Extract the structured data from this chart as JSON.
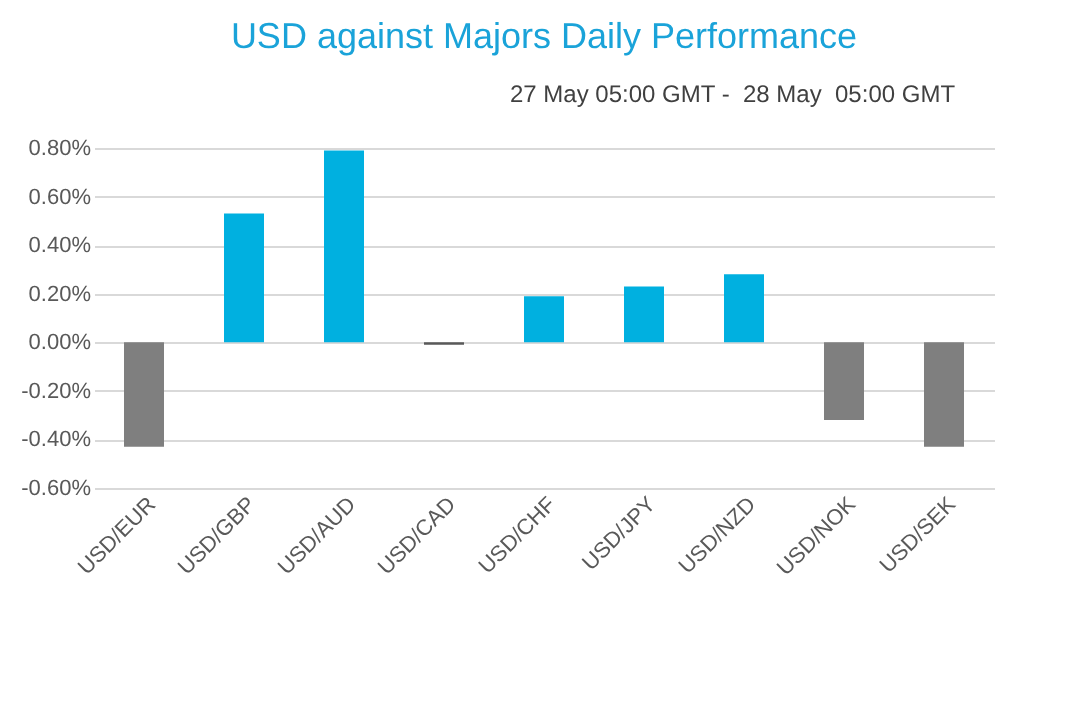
{
  "chart_data": {
    "type": "bar",
    "title": "USD against Majors Daily Performance",
    "subtitle": "27 May 05:00 GMT -  28 May  05:00 GMT",
    "categories": [
      "USD/EUR",
      "USD/GBP",
      "USD/AUD",
      "USD/CAD",
      "USD/CHF",
      "USD/JPY",
      "USD/NZD",
      "USD/NOK",
      "USD/SEK"
    ],
    "values": [
      -0.43,
      0.53,
      0.79,
      -0.01,
      0.19,
      0.23,
      0.28,
      -0.32,
      -0.43
    ],
    "colors": [
      "#7f7f7f",
      "#00b0e0",
      "#00b0e0",
      "#595959",
      "#00b0e0",
      "#00b0e0",
      "#00b0e0",
      "#7f7f7f",
      "#7f7f7f"
    ],
    "ylim": [
      -0.6,
      0.8
    ],
    "yticks": [
      {
        "value": -0.6,
        "label": "-0.60%"
      },
      {
        "value": -0.4,
        "label": "-0.40%"
      },
      {
        "value": -0.2,
        "label": "-0.20%"
      },
      {
        "value": 0,
        "label": "0.00%"
      },
      {
        "value": 0.2,
        "label": "0.20%"
      },
      {
        "value": 0.4,
        "label": "0.40%"
      },
      {
        "value": 0.6,
        "label": "0.60%"
      },
      {
        "value": 0.8,
        "label": "0.80%"
      }
    ],
    "grid": "y"
  }
}
